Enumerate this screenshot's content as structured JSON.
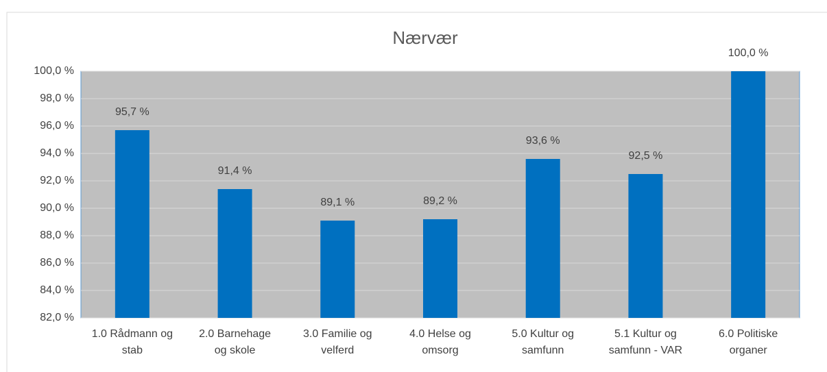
{
  "chart_data": {
    "type": "bar",
    "title": "Nærvær",
    "categories": [
      [
        "1.0 Rådmann og",
        "stab"
      ],
      [
        "2.0 Barnehage",
        "og skole"
      ],
      [
        "3.0 Familie og",
        "velferd"
      ],
      [
        "4.0 Helse og",
        "omsorg"
      ],
      [
        "5.0 Kultur og",
        "samfunn"
      ],
      [
        "5.1 Kultur og",
        "samfunn - VAR"
      ],
      [
        "6.0 Politiske",
        "organer"
      ]
    ],
    "values": [
      95.7,
      91.4,
      89.1,
      89.2,
      93.6,
      92.5,
      100.0
    ],
    "value_labels": [
      "95,7 %",
      "91,4 %",
      "89,1 %",
      "89,2 %",
      "93,6 %",
      "92,5 %",
      "100,0 %"
    ],
    "color": "#0070c0",
    "ylim": [
      82,
      100
    ],
    "yticks": [
      {
        "value": 82,
        "label": "82,0 %"
      },
      {
        "value": 84,
        "label": "84,0 %"
      },
      {
        "value": 86,
        "label": "86,0 %"
      },
      {
        "value": 88,
        "label": "88,0 %"
      },
      {
        "value": 90,
        "label": "90,0 %"
      },
      {
        "value": 92,
        "label": "92,0 %"
      },
      {
        "value": 94,
        "label": "94,0 %"
      },
      {
        "value": 96,
        "label": "96,0 %"
      },
      {
        "value": 98,
        "label": "98,0 %"
      },
      {
        "value": 100,
        "label": "100,0 %"
      }
    ],
    "grid": true
  }
}
